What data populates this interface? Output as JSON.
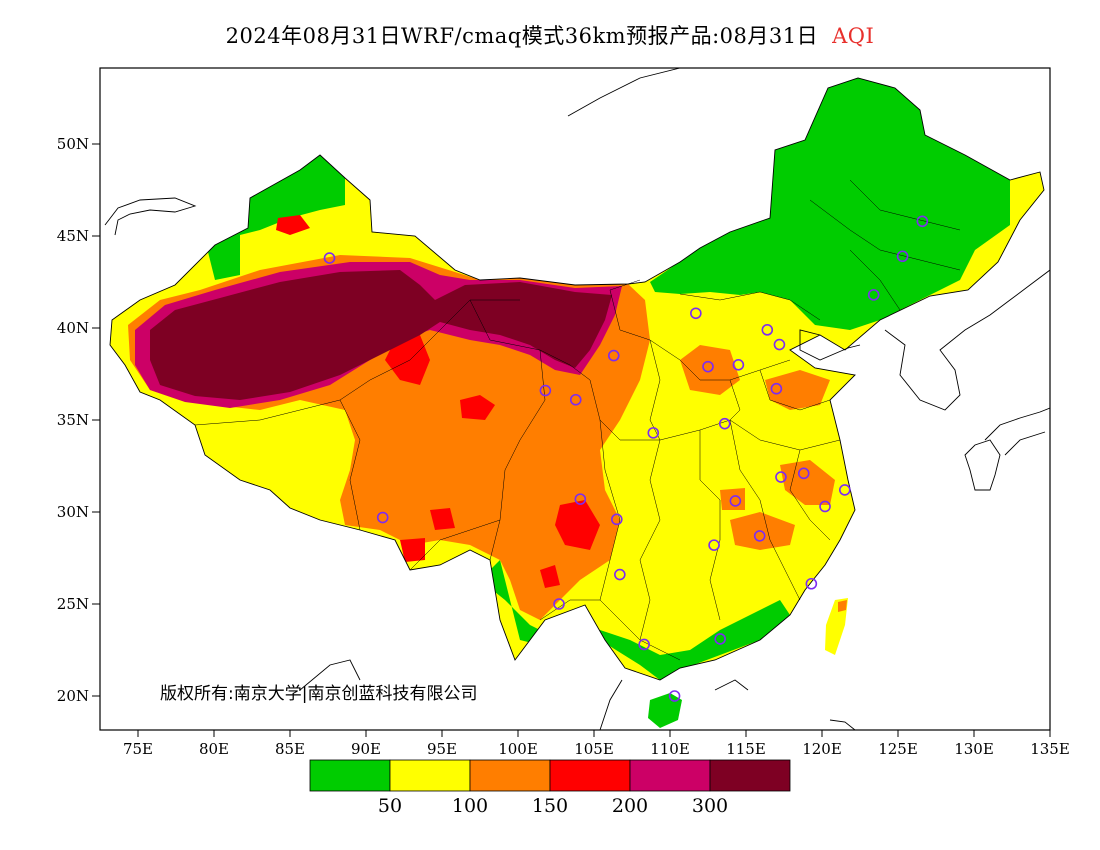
{
  "title": {
    "main": "2024年08月31日WRF/cmaq模式36km预报产品:08月31日",
    "variable": "AQI"
  },
  "copyright": "版权所有:南京大学|南京创蓝科技有限公司",
  "axes": {
    "lat_labels": [
      "50N",
      "45N",
      "40N",
      "35N",
      "30N",
      "25N",
      "20N"
    ],
    "lat_values": [
      50,
      45,
      40,
      35,
      30,
      25,
      20
    ],
    "lon_labels": [
      "75E",
      "80E",
      "85E",
      "90E",
      "95E",
      "100E",
      "105E",
      "110E",
      "115E",
      "120E",
      "125E",
      "130E",
      "135E"
    ],
    "lon_values": [
      75,
      80,
      85,
      90,
      95,
      100,
      105,
      110,
      115,
      120,
      125,
      130,
      135
    ]
  },
  "legend": {
    "colors": [
      "#00cc00",
      "#ffff00",
      "#ff7e00",
      "#ff0000",
      "#cc0066",
      "#7e0023"
    ],
    "labels": [
      "50",
      "100",
      "150",
      "200",
      "300"
    ]
  },
  "colors": {
    "good": "#00cc00",
    "moderate": "#ffff00",
    "usg": "#ff7e00",
    "unhealthy": "#ff0000",
    "very_unhealthy": "#cc0066",
    "hazardous": "#7e0023",
    "station_marker": "#7d2cf0"
  },
  "stations": [
    {
      "lon": 87.6,
      "lat": 43.8
    },
    {
      "lon": 91.1,
      "lat": 29.7
    },
    {
      "lon": 101.8,
      "lat": 36.6
    },
    {
      "lon": 103.8,
      "lat": 36.1
    },
    {
      "lon": 106.3,
      "lat": 38.5
    },
    {
      "lon": 111.7,
      "lat": 40.8
    },
    {
      "lon": 112.5,
      "lat": 37.9
    },
    {
      "lon": 114.5,
      "lat": 38.0
    },
    {
      "lon": 116.4,
      "lat": 39.9
    },
    {
      "lon": 117.2,
      "lat": 39.1
    },
    {
      "lon": 117.0,
      "lat": 36.7
    },
    {
      "lon": 113.6,
      "lat": 34.8
    },
    {
      "lon": 108.9,
      "lat": 34.3
    },
    {
      "lon": 104.1,
      "lat": 30.7
    },
    {
      "lon": 106.5,
      "lat": 29.6
    },
    {
      "lon": 106.7,
      "lat": 26.6
    },
    {
      "lon": 102.7,
      "lat": 25.0
    },
    {
      "lon": 108.3,
      "lat": 22.8
    },
    {
      "lon": 113.3,
      "lat": 23.1
    },
    {
      "lon": 110.3,
      "lat": 20.0
    },
    {
      "lon": 112.9,
      "lat": 28.2
    },
    {
      "lon": 114.3,
      "lat": 30.6
    },
    {
      "lon": 115.9,
      "lat": 28.7
    },
    {
      "lon": 117.3,
      "lat": 31.9
    },
    {
      "lon": 118.8,
      "lat": 32.1
    },
    {
      "lon": 120.2,
      "lat": 30.3
    },
    {
      "lon": 121.5,
      "lat": 31.2
    },
    {
      "lon": 119.3,
      "lat": 26.1
    },
    {
      "lon": 123.4,
      "lat": 41.8
    },
    {
      "lon": 125.3,
      "lat": 43.9
    },
    {
      "lon": 126.6,
      "lat": 45.8
    }
  ]
}
